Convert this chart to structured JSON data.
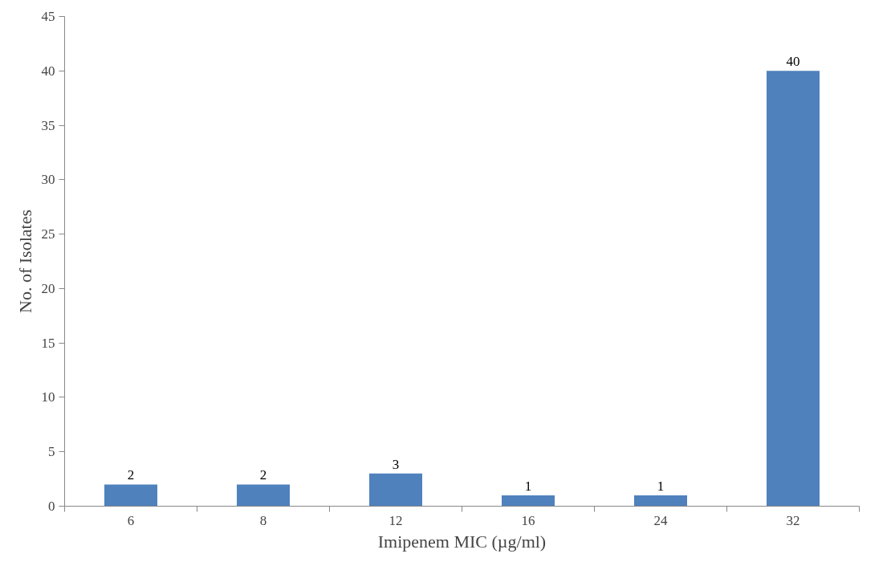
{
  "chart_data": {
    "type": "bar",
    "xlabel": "Imipenem MIC (µg/ml)",
    "ylabel": "No. of Isolates",
    "categories": [
      "6",
      "8",
      "12",
      "16",
      "24",
      "32"
    ],
    "values": [
      2,
      2,
      3,
      1,
      1,
      40
    ],
    "color": "#4f81bd",
    "ylim": [
      0,
      45
    ],
    "yticks": [
      0,
      5,
      10,
      15,
      20,
      25,
      30,
      35,
      40,
      45
    ],
    "grid": false,
    "data_labels": true
  }
}
